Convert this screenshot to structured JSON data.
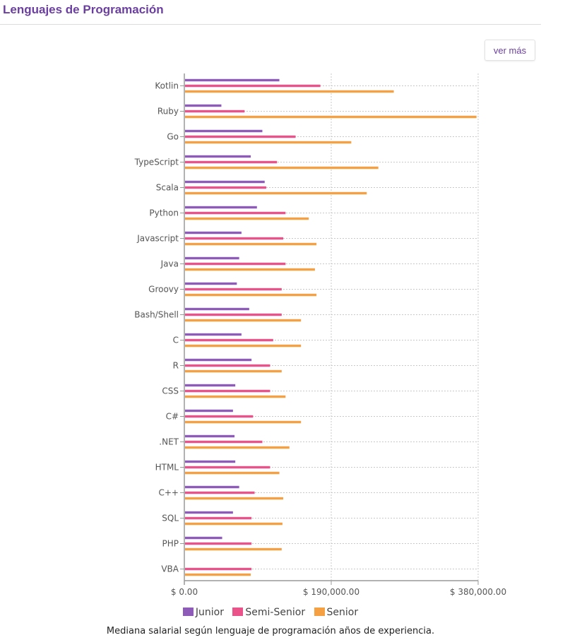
{
  "header": {
    "title": "Lenguajes de Programación",
    "more_label": "ver más"
  },
  "caption": "Mediana salarial según lenguaje de programación años de experiencia.",
  "colors": {
    "Junior": "#8e5cb8",
    "Semi-Senior": "#e9538a",
    "Senior": "#f5a043",
    "grid": "#c8c8c8",
    "axis": "#999999"
  },
  "chart_data": {
    "type": "bar",
    "orientation": "horizontal",
    "categories": [
      "Kotlin",
      "Ruby",
      "Go",
      "TypeScript",
      "Scala",
      "Python",
      "Javascript",
      "Java",
      "Groovy",
      "Bash/Shell",
      "C",
      "R",
      "CSS",
      "C#",
      ".NET",
      "HTML",
      "C++",
      "SQL",
      "PHP",
      "VBA"
    ],
    "series": [
      {
        "name": "Junior",
        "values": [
          122000,
          47000,
          100000,
          85000,
          103000,
          93000,
          73000,
          70000,
          67000,
          83000,
          73000,
          86000,
          65000,
          62000,
          64000,
          65000,
          70000,
          62000,
          48000,
          0
        ]
      },
      {
        "name": "Semi-Senior",
        "values": [
          175000,
          77000,
          143000,
          119000,
          105000,
          130000,
          127000,
          130000,
          125000,
          125000,
          114000,
          110000,
          110000,
          88000,
          100000,
          110000,
          90000,
          86000,
          86000,
          86000
        ]
      },
      {
        "name": "Senior",
        "values": [
          270000,
          377000,
          215000,
          250000,
          235000,
          160000,
          170000,
          168000,
          170000,
          150000,
          150000,
          125000,
          130000,
          150000,
          135000,
          122000,
          127000,
          126000,
          125000,
          85000
        ]
      }
    ],
    "xlim": [
      0,
      380000
    ],
    "xticks": [
      0,
      190000,
      380000
    ],
    "xtick_labels": [
      "$ 0.00",
      "$ 190,000.00",
      "$ 380,000.00"
    ],
    "grid": true,
    "legend": "bottom-center"
  }
}
